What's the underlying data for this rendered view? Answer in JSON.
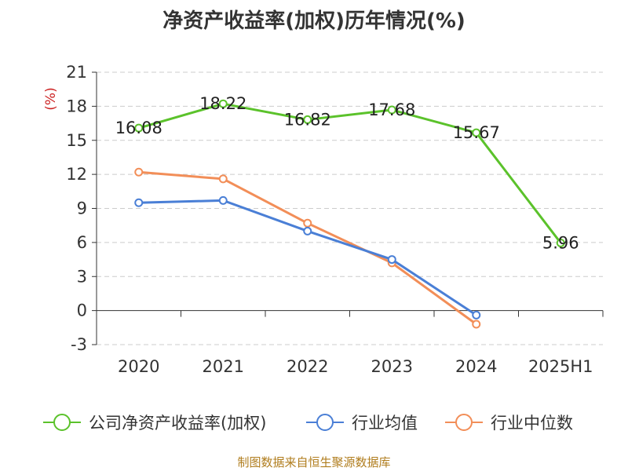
{
  "title": "净资产收益率(加权)历年情况(%)",
  "source": "制图数据来自恒生聚源数据库",
  "chart_data": {
    "type": "line",
    "title": "净资产收益率(加权)历年情况(%)",
    "ylabel": "(%)",
    "xlabel": "",
    "categories": [
      "2020",
      "2021",
      "2022",
      "2023",
      "2024",
      "2025H1"
    ],
    "ylim": [
      -3,
      21
    ],
    "yticks": [
      -3,
      0,
      3,
      6,
      9,
      12,
      15,
      18,
      21
    ],
    "grid": true,
    "legend_position": "bottom",
    "series": [
      {
        "name": "公司净资产收益率(加权)",
        "color": "#5bc22b",
        "values": [
          16.08,
          18.22,
          16.82,
          17.68,
          15.67,
          5.96
        ],
        "show_labels": true
      },
      {
        "name": "行业均值",
        "color": "#4a7fd6",
        "values": [
          9.5,
          9.7,
          7.0,
          4.5,
          -0.4,
          null
        ],
        "show_labels": false
      },
      {
        "name": "行业中位数",
        "color": "#f28e58",
        "values": [
          12.2,
          11.6,
          7.7,
          4.2,
          -1.2,
          null
        ],
        "show_labels": false
      }
    ]
  }
}
